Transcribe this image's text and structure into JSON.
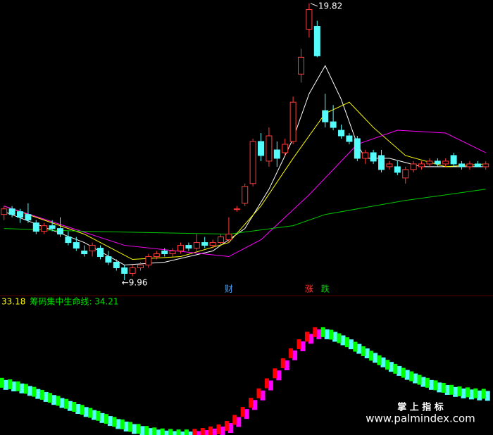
{
  "chart_data": [
    {
      "type": "candlestick",
      "xlim": [
        -0.5,
        60.9
      ],
      "ylim": [
        9.76,
        19.94
      ],
      "x": [
        0,
        1,
        2,
        3,
        4,
        5,
        6,
        7,
        8,
        9,
        10,
        11,
        12,
        13,
        14,
        15,
        16,
        17,
        18,
        19,
        20,
        21,
        22,
        23,
        24,
        25,
        26,
        27,
        28,
        29,
        30,
        31,
        32,
        33,
        34,
        35,
        36,
        37,
        38,
        39,
        40,
        41,
        42,
        43,
        44,
        45,
        46,
        47,
        48,
        49,
        50,
        51,
        52,
        53,
        54,
        55,
        56,
        57,
        58,
        59,
        60
      ],
      "open": [
        12.3,
        12.5,
        12.4,
        12.3,
        12.0,
        11.7,
        11.9,
        11.8,
        11.5,
        11.3,
        11.0,
        11.0,
        11.1,
        10.8,
        10.6,
        10.4,
        10.2,
        10.4,
        10.5,
        10.8,
        11.0,
        10.9,
        11.0,
        11.2,
        11.1,
        11.3,
        11.2,
        11.3,
        11.4,
        12.5,
        12.7,
        13.4,
        14.9,
        14.2,
        14.6,
        14.5,
        14.9,
        17.3,
        18.9,
        19.0,
        16.0,
        15.6,
        15.3,
        15.1,
        15.0,
        14.3,
        14.5,
        14.4,
        14.0,
        14.0,
        13.6,
        13.9,
        14.0,
        14.1,
        14.2,
        14.1,
        14.4,
        14.1,
        14.0,
        14.1,
        14.0
      ],
      "high": [
        12.6,
        12.6,
        12.5,
        12.7,
        12.1,
        12.0,
        12.1,
        12.2,
        11.7,
        11.5,
        11.2,
        11.3,
        11.2,
        11.0,
        10.7,
        10.5,
        10.5,
        10.6,
        10.9,
        11.0,
        11.1,
        11.1,
        11.3,
        11.3,
        11.6,
        11.5,
        11.4,
        11.6,
        12.2,
        12.6,
        13.4,
        15.0,
        15.2,
        15.4,
        14.9,
        15.0,
        16.5,
        18.2,
        19.82,
        19.2,
        16.6,
        16.2,
        15.5,
        15.2,
        15.1,
        14.6,
        14.6,
        14.6,
        14.2,
        14.2,
        14.0,
        14.2,
        14.2,
        14.3,
        14.3,
        14.3,
        14.5,
        14.2,
        14.2,
        14.2,
        14.2
      ],
      "low": [
        12.1,
        12.2,
        12.0,
        12.0,
        11.6,
        11.6,
        11.7,
        11.5,
        11.2,
        11.0,
        10.8,
        10.8,
        10.7,
        10.5,
        10.3,
        9.96,
        10.1,
        10.3,
        10.4,
        10.7,
        10.8,
        10.8,
        10.9,
        11.0,
        11.0,
        11.1,
        11.1,
        11.2,
        11.3,
        12.4,
        12.6,
        13.3,
        14.2,
        14.0,
        14.0,
        14.4,
        14.8,
        17.0,
        18.6,
        17.9,
        15.4,
        15.3,
        15.0,
        14.8,
        14.2,
        14.1,
        14.1,
        13.8,
        13.9,
        13.7,
        13.4,
        13.8,
        13.9,
        14.0,
        14.0,
        14.0,
        14.0,
        13.9,
        13.9,
        14.0,
        13.9
      ],
      "close": [
        12.5,
        12.3,
        12.2,
        12.1,
        11.7,
        11.9,
        11.8,
        11.6,
        11.3,
        11.1,
        10.9,
        11.2,
        10.8,
        10.6,
        10.4,
        10.2,
        10.4,
        10.5,
        10.8,
        10.9,
        10.9,
        11.0,
        11.2,
        11.1,
        11.3,
        11.2,
        11.3,
        11.5,
        11.6,
        12.5,
        13.3,
        14.9,
        14.4,
        15.1,
        14.3,
        14.8,
        16.3,
        17.9,
        19.6,
        17.95,
        15.6,
        15.4,
        15.1,
        14.9,
        14.3,
        14.5,
        14.2,
        13.9,
        14.1,
        13.8,
        13.9,
        14.1,
        14.1,
        14.2,
        14.1,
        14.2,
        14.1,
        14.0,
        14.1,
        14.0,
        14.1
      ],
      "up_color": "#ff3b3b",
      "down_color": "#54fcfc",
      "lines": [
        {
          "color": "#ffffff",
          "x": [
            0,
            10,
            15,
            20,
            26,
            30,
            33,
            36,
            38,
            40,
            42,
            44,
            45,
            48,
            52,
            56,
            60
          ],
          "values": [
            12.4,
            11.3,
            10.5,
            10.6,
            11.0,
            11.8,
            13.2,
            15.0,
            16.6,
            17.6,
            16.4,
            14.8,
            14.3,
            14.3,
            14.0,
            14.0,
            14.0
          ]
        },
        {
          "color": "#ffff00",
          "x": [
            0,
            10,
            16,
            22,
            28,
            32,
            36,
            40,
            43,
            46,
            50,
            55,
            60
          ],
          "values": [
            12.6,
            11.6,
            10.7,
            10.8,
            11.3,
            12.6,
            14.3,
            15.9,
            16.3,
            15.4,
            14.4,
            14.0,
            14.1
          ]
        },
        {
          "color": "#ff00ff",
          "x": [
            0,
            15,
            28,
            32,
            38,
            44,
            49,
            55,
            60
          ],
          "values": [
            12.6,
            11.2,
            10.8,
            11.4,
            13.0,
            14.8,
            15.3,
            15.2,
            14.5
          ]
        },
        {
          "color": "#00c800",
          "x": [
            0,
            10,
            28,
            36,
            40,
            50,
            60
          ],
          "values": [
            11.8,
            11.7,
            11.6,
            11.9,
            12.3,
            12.8,
            13.2
          ]
        }
      ],
      "annotations": [
        {
          "label": "19.82",
          "x": 38,
          "value": 19.82
        },
        {
          "label": "←9.96",
          "x": 15,
          "value": 9.96
        }
      ],
      "events": [
        {
          "label": "财",
          "x": 28,
          "color": "#4aa3ff"
        },
        {
          "label": "涨",
          "x": 38,
          "color": "#ff3b3b"
        },
        {
          "label": "跌",
          "x": 40,
          "color": "#00e000"
        }
      ]
    },
    {
      "type": "bar",
      "xlim": [
        -0.5,
        60.9
      ],
      "ylim": [
        25,
        50
      ],
      "legend": [
        {
          "label": "33.18",
          "color": "#ffff00"
        },
        {
          "label": "筹码集中生命线: 34.21",
          "color": "#00e000"
        }
      ],
      "up_colors": [
        "#ff0000",
        "#ff00ff"
      ],
      "down_colors": [
        "#00ff00",
        "#54fcfc"
      ],
      "values": [
        36.4,
        36.1,
        35.7,
        35.2,
        34.6,
        34.0,
        33.4,
        32.8,
        32.2,
        31.6,
        31.0,
        30.4,
        29.8,
        29.2,
        28.6,
        28.1,
        27.6,
        27.2,
        26.8,
        26.5,
        26.3,
        26.2,
        26.1,
        26.1,
        26.2,
        26.4,
        26.7,
        27.1,
        27.8,
        29.0,
        30.6,
        32.4,
        34.3,
        36.3,
        38.3,
        40.3,
        42.3,
        44.1,
        45.6,
        46.5,
        46.5,
        46.0,
        45.3,
        44.5,
        43.6,
        42.7,
        41.8,
        40.9,
        40.0,
        39.2,
        38.4,
        37.7,
        37.0,
        36.4,
        35.9,
        35.4,
        35.0,
        34.7,
        34.5,
        34.3,
        34.21
      ]
    }
  ],
  "watermark": {
    "title": "掌 上 指 标",
    "url": "www.palmindex.com"
  }
}
